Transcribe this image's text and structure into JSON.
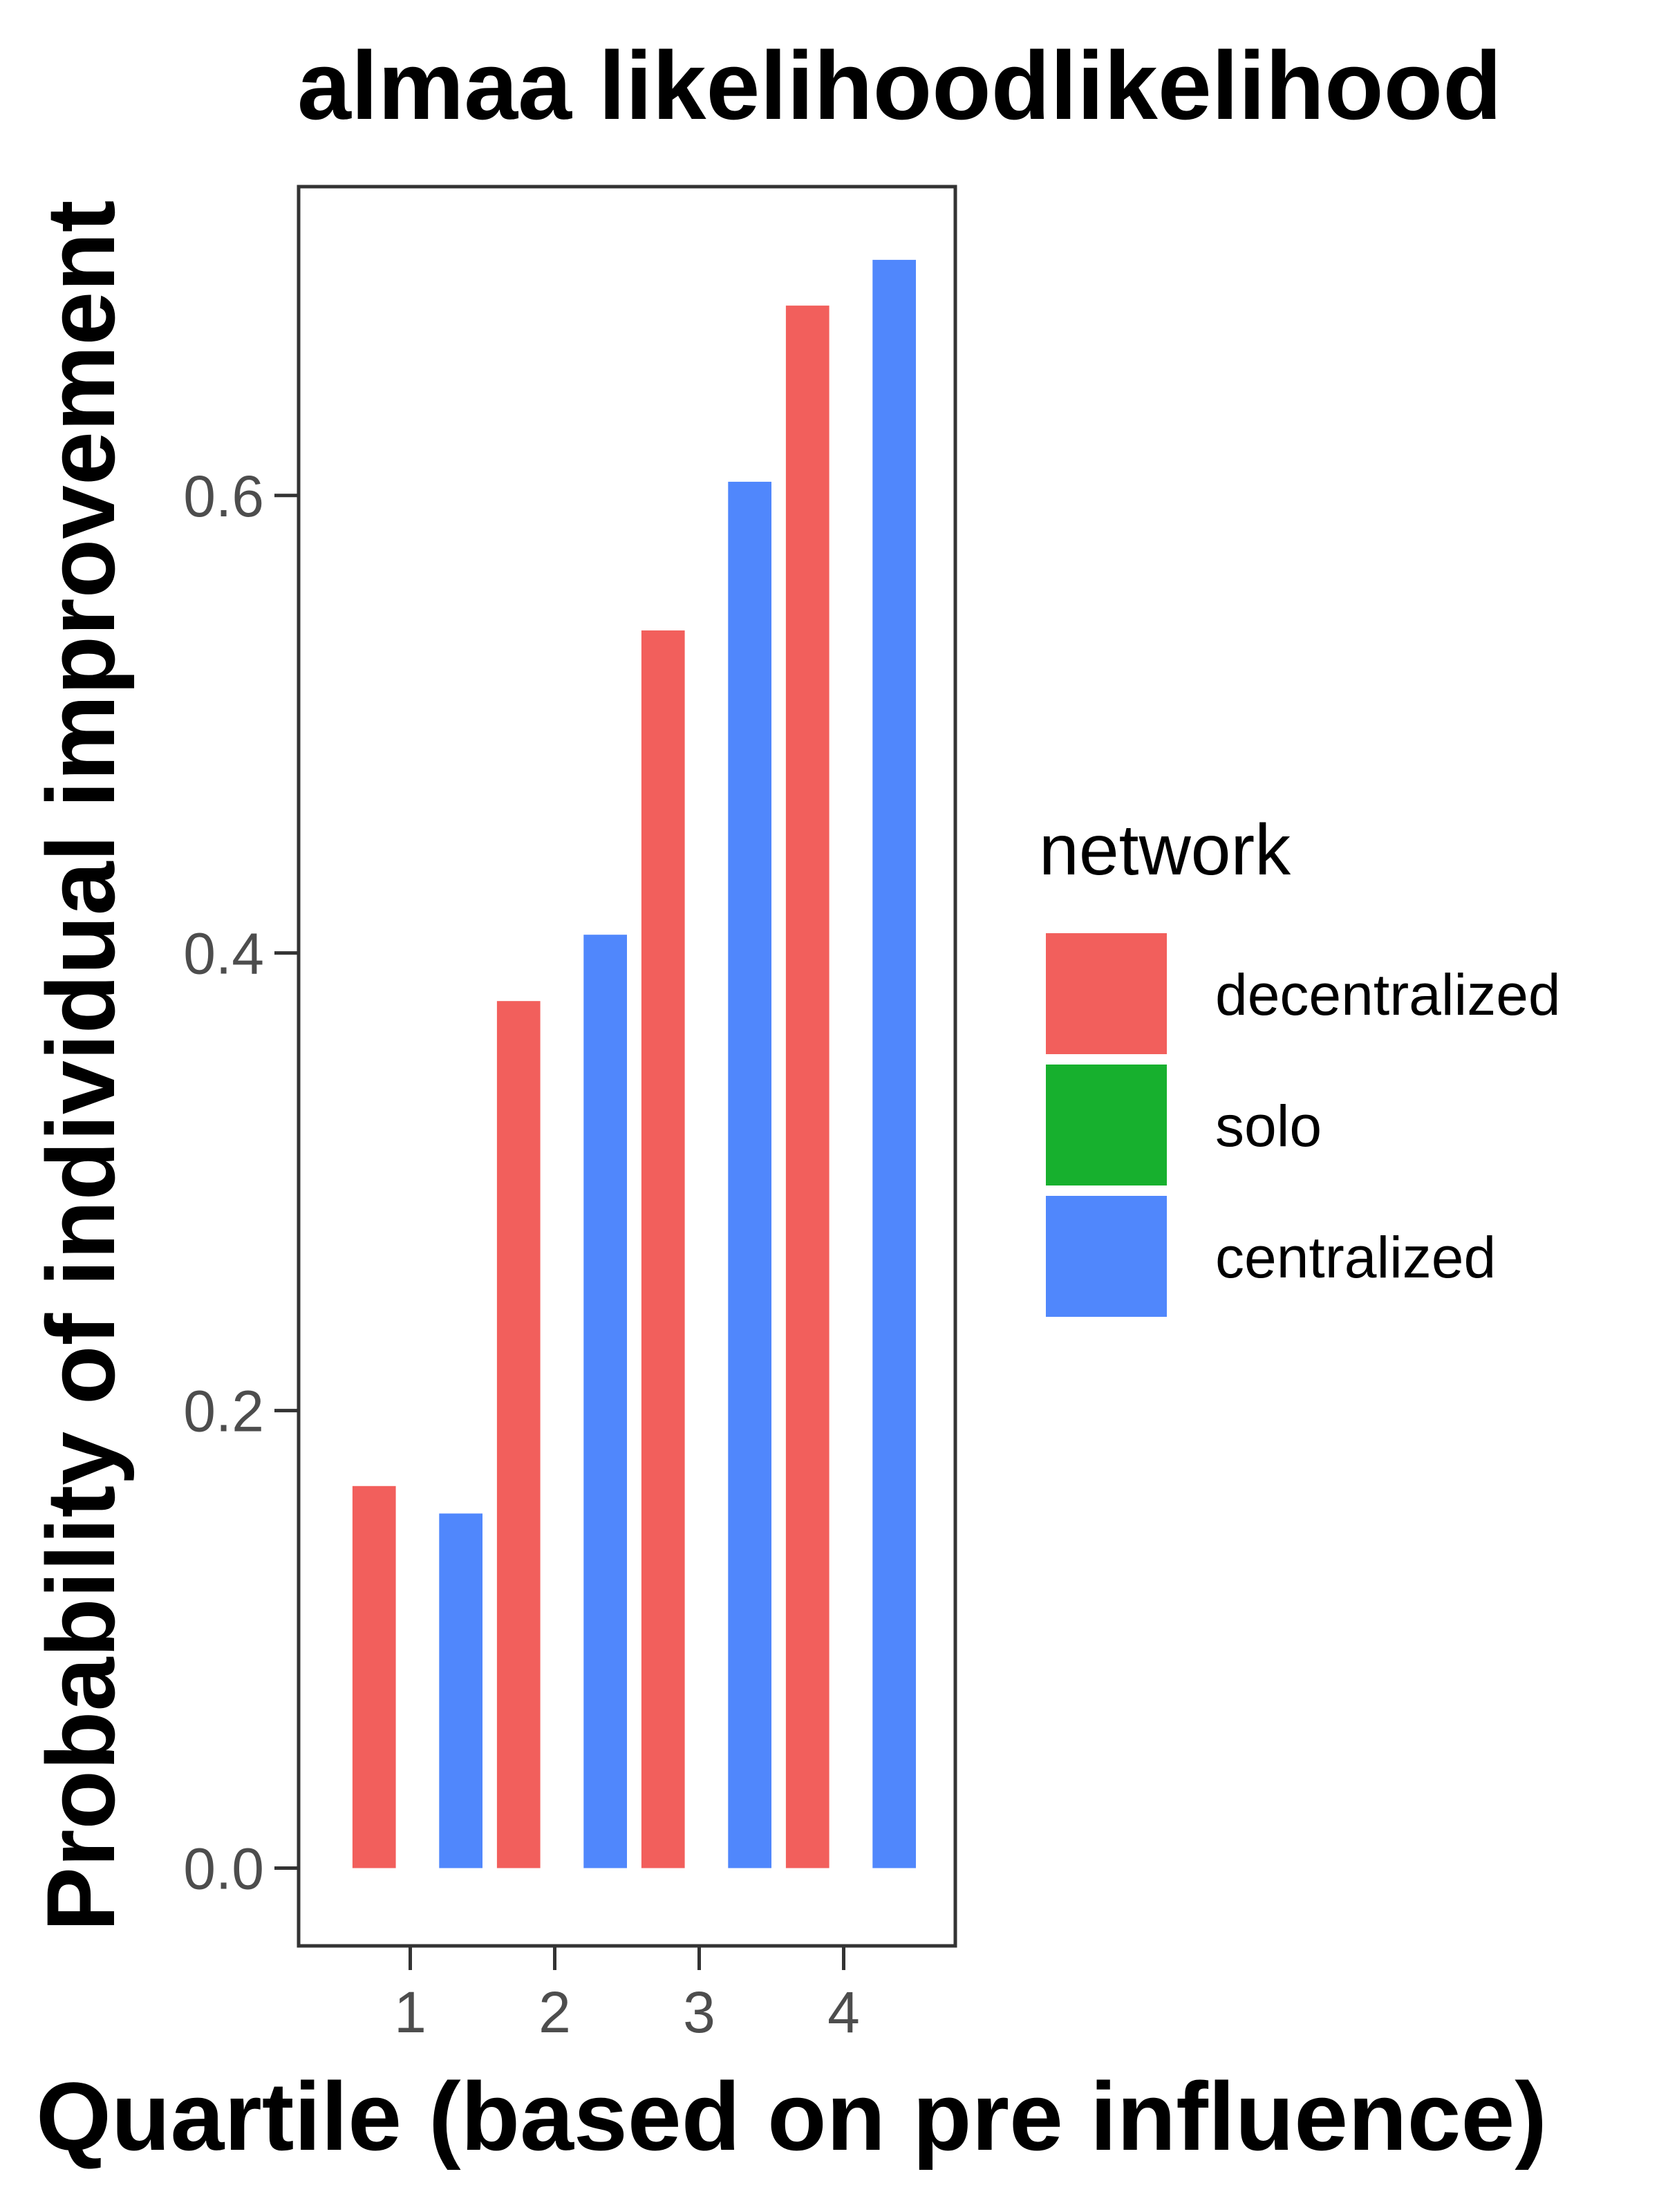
{
  "chart_data": {
    "type": "bar",
    "title": "almaa likelihoodlikelihood",
    "xlabel": "Quartile (based on pre influence)",
    "ylabel": "Probability of individual improvement",
    "categories": [
      "1",
      "2",
      "3",
      "4"
    ],
    "yticks": [
      "0.0",
      "0.2",
      "0.4",
      "0.6"
    ],
    "ylim": [
      -0.034,
      0.735
    ],
    "grid": false,
    "legend": {
      "title": "network",
      "placement": "right",
      "items": [
        {
          "label": "decentralized",
          "color": "#F25F5C"
        },
        {
          "label": "solo",
          "color": "#17B02E"
        },
        {
          "label": "centralized",
          "color": "#5087FC"
        }
      ]
    },
    "series": [
      {
        "name": "decentralized",
        "color": "#F25F5C",
        "values": [
          0.167,
          0.379,
          0.541,
          0.683
        ]
      },
      {
        "name": "solo",
        "color": "#17B02E",
        "values": [
          null,
          null,
          null,
          null
        ]
      },
      {
        "name": "centralized",
        "color": "#5087FC",
        "values": [
          0.155,
          0.408,
          0.606,
          0.703
        ]
      }
    ]
  }
}
